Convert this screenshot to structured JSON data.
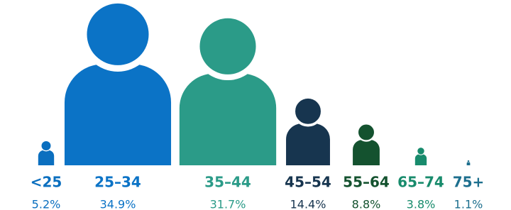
{
  "chart_data": {
    "type": "pictograph",
    "categories": [
      "<25",
      "25–34",
      "35–44",
      "45–54",
      "55–64",
      "65–74",
      "75+"
    ],
    "values": [
      5.2,
      34.9,
      31.7,
      14.4,
      8.8,
      3.8,
      1.1
    ],
    "value_labels": [
      "5.2%",
      "34.9%",
      "31.7%",
      "14.4%",
      "8.8%",
      "3.8%",
      "1.1%"
    ],
    "colors": [
      "#0b6fbf",
      "#0b73c6",
      "#2b9b88",
      "#17354f",
      "#14522f",
      "#188b6c",
      "#1d6f8e"
    ]
  }
}
